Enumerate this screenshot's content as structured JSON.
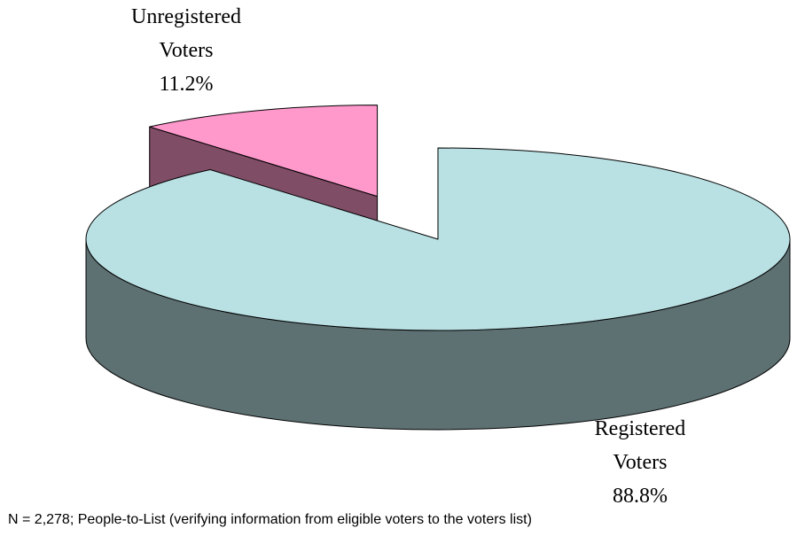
{
  "chart_data": {
    "type": "pie3d",
    "categories": [
      "Registered Voters",
      "Unregistered Voters"
    ],
    "values": [
      88.8,
      11.2
    ],
    "value_labels": [
      "88.8%",
      "11.2%"
    ],
    "colors": [
      "#b9e0e3",
      "#ff99cc"
    ],
    "exploded": [
      false,
      true
    ],
    "note": "N = 2,278; People-to-List (verifying information from eligible voters to the voters list)"
  }
}
